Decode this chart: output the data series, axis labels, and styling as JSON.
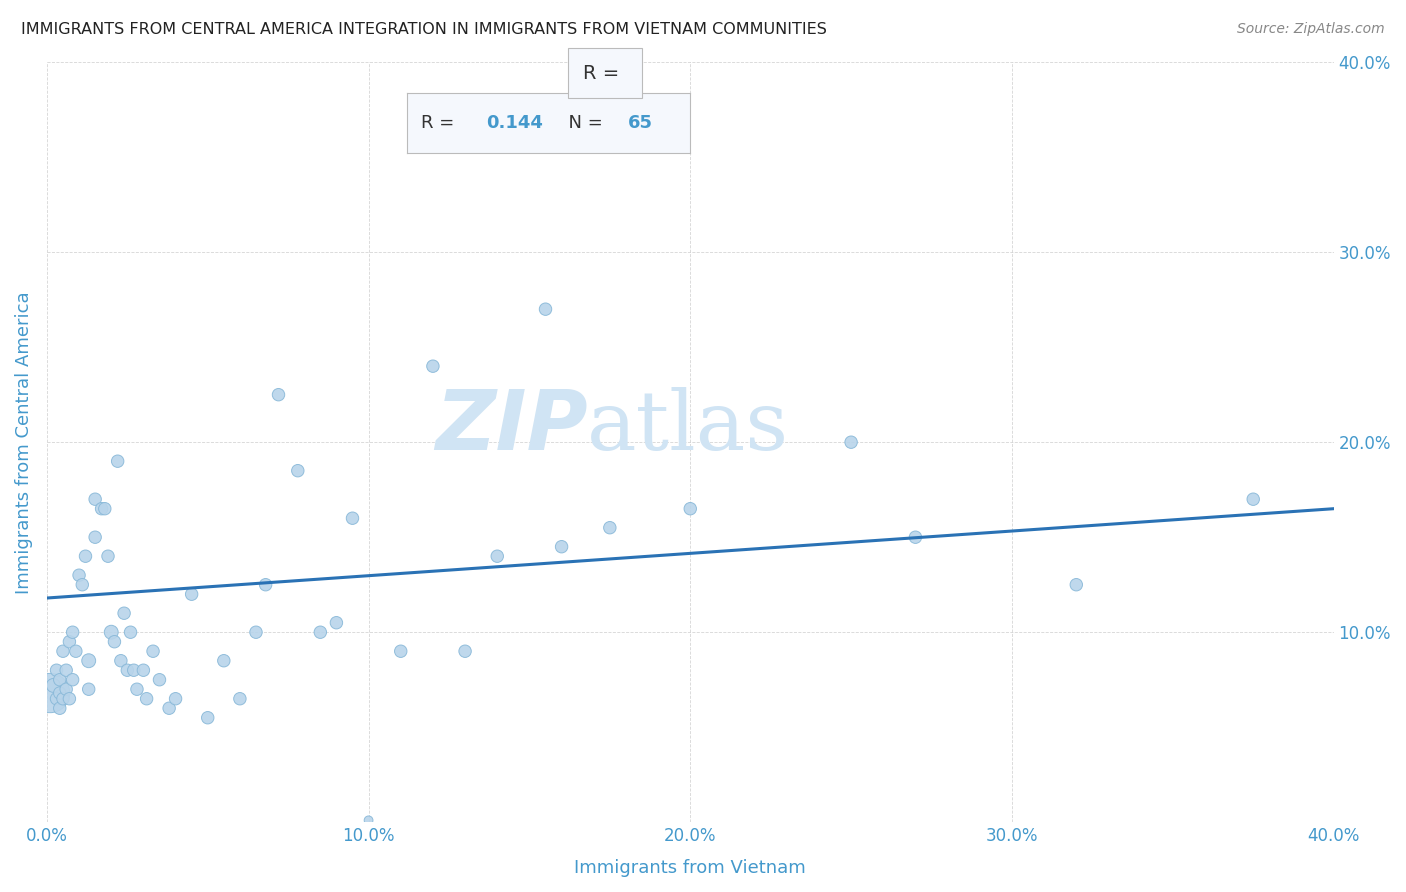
{
  "title": "IMMIGRANTS FROM CENTRAL AMERICA INTEGRATION IN IMMIGRANTS FROM VIETNAM COMMUNITIES",
  "source": "Source: ZipAtlas.com",
  "xlabel": "Immigrants from Vietnam",
  "ylabel": "Immigrants from Central America",
  "R": 0.144,
  "N": 65,
  "xlim": [
    0.0,
    0.4
  ],
  "ylim": [
    0.0,
    0.4
  ],
  "xticks": [
    0.0,
    0.1,
    0.2,
    0.3,
    0.4
  ],
  "yticks": [
    0.0,
    0.1,
    0.2,
    0.3,
    0.4
  ],
  "xtick_labels": [
    "0.0%",
    "10.0%",
    "20.0%",
    "30.0%",
    "40.0%"
  ],
  "ytick_labels": [
    "",
    "10.0%",
    "20.0%",
    "30.0%",
    "40.0%"
  ],
  "scatter_color": "#b8d4ea",
  "scatter_edge_color": "#88b8d8",
  "line_color": "#2a72b5",
  "grid_color": "#cccccc",
  "title_color": "#222222",
  "axis_label_color": "#4499cc",
  "tick_label_color": "#4499cc",
  "source_color": "#888888",
  "watermark_color": "#d0e4f4",
  "annotation_fill": "#f5f8fd",
  "annotation_border": "#bbbbbb",
  "scatter_x": [
    0.001,
    0.002,
    0.003,
    0.003,
    0.004,
    0.004,
    0.004,
    0.005,
    0.005,
    0.006,
    0.006,
    0.007,
    0.007,
    0.008,
    0.008,
    0.009,
    0.01,
    0.011,
    0.012,
    0.013,
    0.013,
    0.015,
    0.015,
    0.017,
    0.018,
    0.019,
    0.02,
    0.021,
    0.022,
    0.023,
    0.024,
    0.025,
    0.026,
    0.027,
    0.028,
    0.03,
    0.031,
    0.033,
    0.035,
    0.038,
    0.04,
    0.045,
    0.05,
    0.055,
    0.06,
    0.065,
    0.068,
    0.072,
    0.078,
    0.085,
    0.09,
    0.095,
    0.1,
    0.11,
    0.12,
    0.13,
    0.14,
    0.155,
    0.16,
    0.175,
    0.2,
    0.25,
    0.27,
    0.32,
    0.375
  ],
  "scatter_y": [
    0.068,
    0.072,
    0.065,
    0.08,
    0.068,
    0.075,
    0.06,
    0.09,
    0.065,
    0.07,
    0.08,
    0.065,
    0.095,
    0.1,
    0.075,
    0.09,
    0.13,
    0.125,
    0.14,
    0.085,
    0.07,
    0.17,
    0.15,
    0.165,
    0.165,
    0.14,
    0.1,
    0.095,
    0.19,
    0.085,
    0.11,
    0.08,
    0.1,
    0.08,
    0.07,
    0.08,
    0.065,
    0.09,
    0.075,
    0.06,
    0.065,
    0.12,
    0.055,
    0.085,
    0.065,
    0.1,
    0.125,
    0.225,
    0.185,
    0.1,
    0.105,
    0.16,
    0.001,
    0.09,
    0.24,
    0.09,
    0.14,
    0.27,
    0.145,
    0.155,
    0.165,
    0.2,
    0.15,
    0.125,
    0.17
  ],
  "scatter_sizes": [
    800,
    100,
    80,
    80,
    80,
    80,
    80,
    80,
    80,
    80,
    80,
    80,
    80,
    80,
    80,
    80,
    80,
    80,
    80,
    100,
    80,
    80,
    80,
    80,
    80,
    80,
    100,
    80,
    80,
    80,
    80,
    80,
    80,
    80,
    80,
    80,
    80,
    80,
    80,
    80,
    80,
    80,
    80,
    80,
    80,
    80,
    80,
    80,
    80,
    80,
    80,
    80,
    40,
    80,
    80,
    80,
    80,
    80,
    80,
    80,
    80,
    80,
    80,
    80,
    80
  ],
  "line_x": [
    0.0,
    0.4
  ],
  "line_y_start": 0.118,
  "line_y_end": 0.165
}
